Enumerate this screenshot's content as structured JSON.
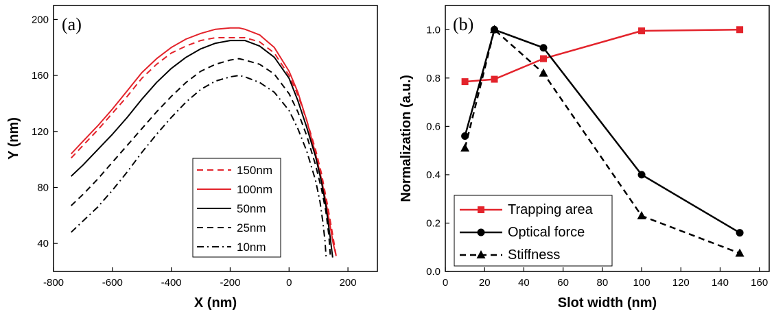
{
  "chart_data": [
    {
      "type": "line",
      "panel_label": "(a)",
      "xlabel": "X (nm)",
      "ylabel": "Y (nm)",
      "xlim": [
        -800,
        300
      ],
      "ylim": [
        20,
        210
      ],
      "xticks": [
        -800,
        -600,
        -400,
        -200,
        0,
        200
      ],
      "yticks": [
        40,
        80,
        120,
        160,
        200
      ],
      "legend_position": "bottom-center",
      "series": [
        {
          "name": "150nm",
          "color": "#e3232b",
          "dash": "dashed",
          "x": [
            -740,
            -700,
            -650,
            -600,
            -550,
            -500,
            -450,
            -400,
            -350,
            -300,
            -250,
            -200,
            -170,
            -150,
            -100,
            -50,
            0,
            30,
            60,
            90,
            110,
            130,
            150,
            160
          ],
          "y": [
            101,
            110,
            121,
            133,
            145,
            158,
            168,
            176,
            181,
            185,
            187,
            187,
            187,
            187,
            184,
            176,
            160,
            146,
            128,
            107,
            90,
            68,
            44,
            31
          ]
        },
        {
          "name": "100nm",
          "color": "#e3232b",
          "dash": "solid",
          "x": [
            -740,
            -700,
            -650,
            -600,
            -550,
            -500,
            -450,
            -400,
            -350,
            -300,
            -250,
            -200,
            -170,
            -150,
            -100,
            -50,
            0,
            30,
            60,
            90,
            110,
            130,
            150,
            160
          ],
          "y": [
            104,
            113,
            124,
            136,
            149,
            162,
            172,
            180,
            186,
            190,
            193,
            194,
            194,
            193,
            189,
            180,
            163,
            148,
            128,
            104,
            86,
            64,
            40,
            31
          ]
        },
        {
          "name": "50nm",
          "color": "#000000",
          "dash": "solid",
          "x": [
            -740,
            -700,
            -650,
            -600,
            -550,
            -500,
            -450,
            -400,
            -350,
            -300,
            -250,
            -200,
            -170,
            -150,
            -100,
            -50,
            0,
            30,
            60,
            90,
            110,
            125,
            140,
            148
          ],
          "y": [
            88,
            96,
            107,
            118,
            130,
            143,
            155,
            165,
            173,
            179,
            183,
            185,
            185,
            185,
            181,
            173,
            158,
            142,
            123,
            102,
            84,
            67,
            44,
            30
          ]
        },
        {
          "name": "25nm",
          "color": "#000000",
          "dash": "dashed",
          "x": [
            -740,
            -700,
            -650,
            -600,
            -550,
            -500,
            -450,
            -400,
            -350,
            -300,
            -250,
            -200,
            -170,
            -150,
            -100,
            -50,
            0,
            30,
            60,
            90,
            110,
            125,
            135,
            140
          ],
          "y": [
            67,
            75,
            86,
            98,
            110,
            122,
            134,
            145,
            155,
            163,
            168,
            171,
            172,
            171,
            168,
            161,
            147,
            134,
            117,
            96,
            79,
            63,
            46,
            32
          ]
        },
        {
          "name": "10nm",
          "color": "#000000",
          "dash": "dashdot",
          "x": [
            -740,
            -700,
            -650,
            -600,
            -550,
            -500,
            -450,
            -400,
            -350,
            -300,
            -250,
            -200,
            -170,
            -150,
            -100,
            -50,
            0,
            30,
            60,
            90,
            105,
            115,
            122,
            126
          ],
          "y": [
            48,
            56,
            66,
            78,
            91,
            105,
            118,
            130,
            141,
            150,
            156,
            159,
            160,
            159,
            155,
            148,
            135,
            122,
            106,
            85,
            70,
            55,
            42,
            30
          ]
        }
      ]
    },
    {
      "type": "line",
      "panel_label": "(b)",
      "xlabel": "Slot width (nm)",
      "ylabel": "Normalization (a.u.)",
      "xlim": [
        0,
        165
      ],
      "ylim": [
        0.0,
        1.1
      ],
      "xticks": [
        0,
        20,
        40,
        60,
        80,
        100,
        120,
        140,
        160
      ],
      "yticks": [
        0.0,
        0.2,
        0.4,
        0.6,
        0.8,
        1.0
      ],
      "legend_position": "bottom-left",
      "series": [
        {
          "name": "Trapping area",
          "color": "#e3232b",
          "dash": "solid",
          "marker": "square",
          "x": [
            10,
            25,
            50,
            100,
            150
          ],
          "y": [
            0.785,
            0.795,
            0.88,
            0.995,
            1.0
          ]
        },
        {
          "name": "Optical force",
          "color": "#000000",
          "dash": "solid",
          "marker": "circle",
          "x": [
            10,
            25,
            50,
            100,
            150
          ],
          "y": [
            0.56,
            1.0,
            0.925,
            0.4,
            0.16
          ]
        },
        {
          "name": "Stiffness",
          "color": "#000000",
          "dash": "dashed",
          "marker": "triangle",
          "x": [
            10,
            25,
            50,
            100,
            150
          ],
          "y": [
            0.51,
            1.0,
            0.82,
            0.23,
            0.075
          ]
        }
      ]
    }
  ]
}
